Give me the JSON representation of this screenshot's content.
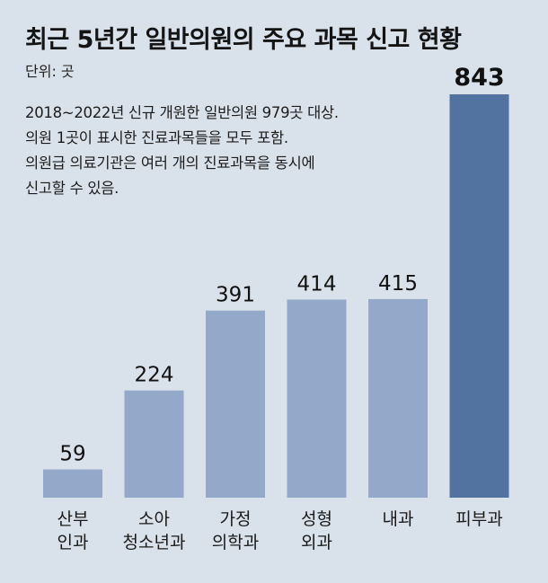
{
  "title": "최근 5년간 일반의원의 주요 과목 신고 현황",
  "unit": "단위: 곳",
  "notes": [
    "2018~2022년 신규 개원한 일반의원 979곳 대상.",
    "의원 1곳이 표시한 진료과목들을 모두 포함.",
    "의원급 의료기관은 여러 개의 진료과목을 동시에",
    "신고할 수 있음."
  ],
  "colors": {
    "background": "#d9e1ea",
    "bar": "#94a9c9",
    "bar_highlight": "#52739f"
  },
  "chart_data": {
    "type": "bar",
    "categories": [
      [
        "산부",
        "인과"
      ],
      [
        "소아",
        "청소년과"
      ],
      [
        "가정",
        "의학과"
      ],
      [
        "성형",
        "외과"
      ],
      [
        "내과"
      ],
      [
        "피부과"
      ]
    ],
    "values": [
      59,
      224,
      391,
      414,
      415,
      843
    ],
    "highlight_index": 5,
    "title": "최근 5년간 일반의원의 주요 과목 신고 현황",
    "ylabel": "",
    "xlabel": "",
    "ylim": [
      0,
      843
    ]
  }
}
